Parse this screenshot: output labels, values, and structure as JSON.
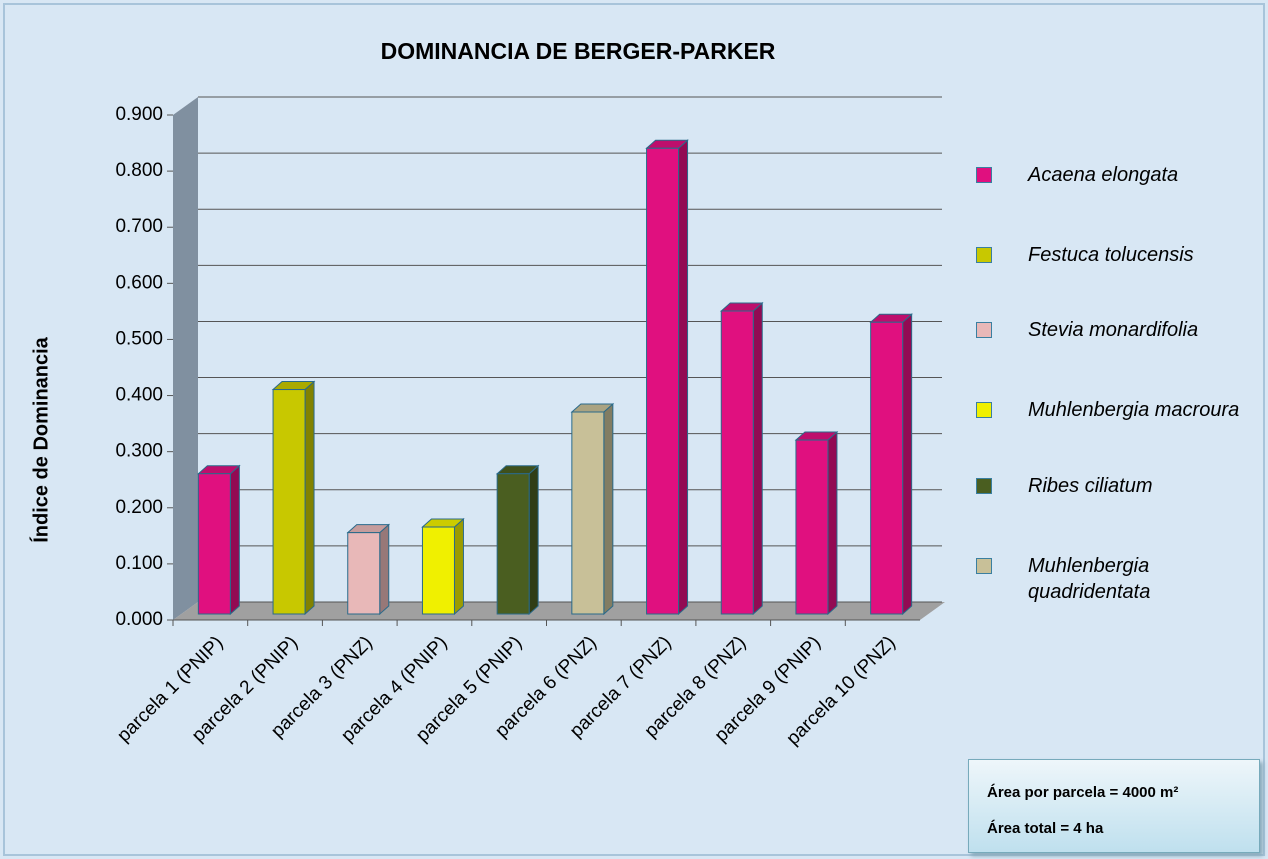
{
  "chart_data": {
    "type": "bar3d",
    "title": "DOMINANCIA DE  BERGER-PARKER",
    "y_label": "Índice de  Dominancia",
    "categories": [
      "parcela 1 (PNIP)",
      "parcela 2 (PNIP)",
      "parcela  3 (PNZ)",
      "parcela 4 (PNIP)",
      "parcela 5 (PNIP)",
      "parcela 6 (PNZ)",
      "parcela 7 (PNZ)",
      "parcela 8 (PNZ)",
      "parcela 9 (PNIP)",
      "parcela 10 (PNZ)"
    ],
    "values": [
      0.25,
      0.4,
      0.145,
      0.155,
      0.25,
      0.36,
      0.83,
      0.54,
      0.31,
      0.52
    ],
    "colors": [
      "#e0107f",
      "#c8c800",
      "#e8b8b8",
      "#f0f000",
      "#4a5e20",
      "#c8c098",
      "#e0107f",
      "#e0107f",
      "#e0107f",
      "#e0107f"
    ],
    "legend": [
      {
        "name": "Acaena elongata",
        "color": "#e0107f"
      },
      {
        "name": "Festuca tolucensis",
        "color": "#c8c800"
      },
      {
        "name": "Stevia monardifolia",
        "color": "#e8b8b8"
      },
      {
        "name": "Muhlenbergia macroura",
        "color": "#f0f000"
      },
      {
        "name": "Ribes ciliatum",
        "color": "#4a5e20"
      },
      {
        "name": "Muhlenbergia quadridentata",
        "color": "#c8c098"
      }
    ],
    "ylim": [
      0,
      0.9
    ],
    "yticks": [
      {
        "value": 0,
        "label": "0.000"
      },
      {
        "value": 0.1,
        "label": "0.100"
      },
      {
        "value": 0.2,
        "label": "0.200"
      },
      {
        "value": 0.3,
        "label": "0.300"
      },
      {
        "value": 0.4,
        "label": "0.400"
      },
      {
        "value": 0.5,
        "label": "0.500"
      },
      {
        "value": 0.6,
        "label": "0.600"
      },
      {
        "value": 0.7,
        "label": "0.700"
      },
      {
        "value": 0.8,
        "label": "0.800"
      },
      {
        "value": 0.9,
        "label": "0.900"
      }
    ],
    "grid": true,
    "notes": [
      "Área por  parcela = 4000 m²",
      "Área total = 4 ha"
    ]
  }
}
